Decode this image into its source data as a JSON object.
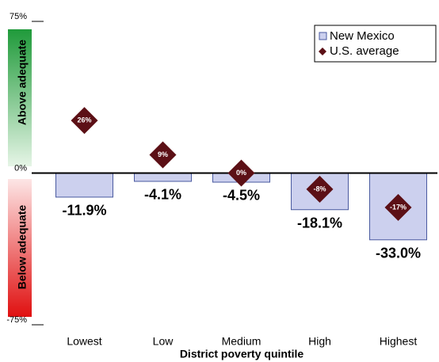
{
  "chart_data": {
    "type": "bar",
    "x_label": "District poverty quintile",
    "categories": [
      "Lowest",
      "Low",
      "Medium",
      "High",
      "Highest"
    ],
    "series": [
      {
        "name": "New Mexico",
        "color": "#ccd0ee",
        "values": [
          -11.9,
          -4.1,
          -4.5,
          -18.1,
          -33.0
        ],
        "value_labels": [
          "-11.9%",
          "-4.1%",
          "-4.5%",
          "-18.1%",
          "-33.0%"
        ]
      },
      {
        "name": "U.S. average",
        "color": "#5c1016",
        "marker": "diamond",
        "values": [
          26,
          9,
          0,
          -8,
          -17
        ],
        "value_labels": [
          "26%",
          "9%",
          "0%",
          "-8%",
          "-17%"
        ]
      }
    ],
    "ylim": [
      -75,
      75
    ],
    "yticks": [
      {
        "value": 75,
        "label": "75%"
      },
      {
        "value": 0,
        "label": "0%"
      },
      {
        "value": -75,
        "label": "-75%"
      }
    ],
    "zones": {
      "above": "Above adequate",
      "below": "Below adequate"
    },
    "legend": "upper right"
  }
}
